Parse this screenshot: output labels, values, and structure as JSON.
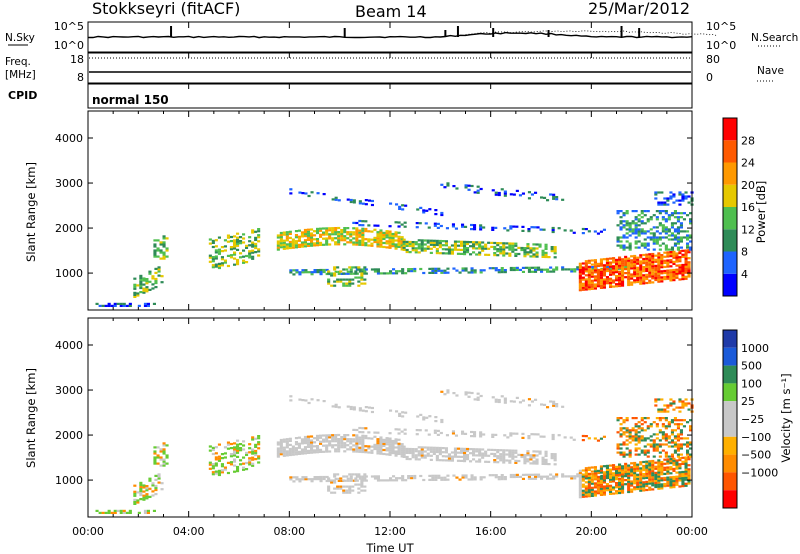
{
  "header": {
    "station": "Stokkseyri (fitACF)",
    "beam": "Beam 14",
    "date": "25/Mar/2012"
  },
  "noise_panel": {
    "left_label": "N.Sky",
    "right_label": "N.Search",
    "left_ticks": [
      "10^5",
      "10^0"
    ],
    "right_ticks": [
      "10^5",
      "10^0"
    ]
  },
  "freq_panel": {
    "left_label_top": "Freq.",
    "left_label_unit": "[MHz]",
    "right_label": "Nave",
    "left_ticks": [
      "18",
      "8"
    ],
    "right_ticks": [
      "80",
      "0"
    ]
  },
  "cpid": {
    "label": "CPID",
    "value": "normal 150"
  },
  "colors": {
    "power": [
      "#0000ff",
      "#1e64ff",
      "#2e8b57",
      "#4fbf4f",
      "#e6c800",
      "#ff9900",
      "#ff5a00",
      "#ff0000"
    ],
    "velocity": [
      "#ff0000",
      "#ff5500",
      "#ff8c00",
      "#ffb000",
      "#c8c8c8",
      "#c8c8c8",
      "#66cc33",
      "#2e8b57",
      "#1a5ad9",
      "#1f3aa8"
    ]
  },
  "chart_data": [
    {
      "type": "heatmap",
      "name": "power",
      "ylabel": "Slant Range [km]",
      "ylim": [
        180,
        4600
      ],
      "yticks": [
        "1000",
        "2000",
        "3000",
        "4000"
      ],
      "colorbar_label": "Power [dB]",
      "colorbar_range": [
        0,
        32
      ],
      "colorbar_ticks": [
        "4",
        "8",
        "12",
        "16",
        "20",
        "24",
        "28"
      ]
    },
    {
      "type": "heatmap",
      "name": "velocity",
      "ylabel": "Slant Range [km]",
      "ylim": [
        180,
        4600
      ],
      "yticks": [
        "1000",
        "2000",
        "3000",
        "4000"
      ],
      "colorbar_label": "Velocity [m s⁻¹]",
      "colorbar_ticks": [
        "1000",
        "500",
        "100",
        "25",
        "−25",
        "−100",
        "−500",
        "−1000"
      ]
    }
  ],
  "x_axis": {
    "label": "Time UT",
    "xlim": [
      0,
      24
    ],
    "ticks": [
      "00:00",
      "04:00",
      "08:00",
      "12:00",
      "16:00",
      "20:00",
      "00:00"
    ]
  }
}
